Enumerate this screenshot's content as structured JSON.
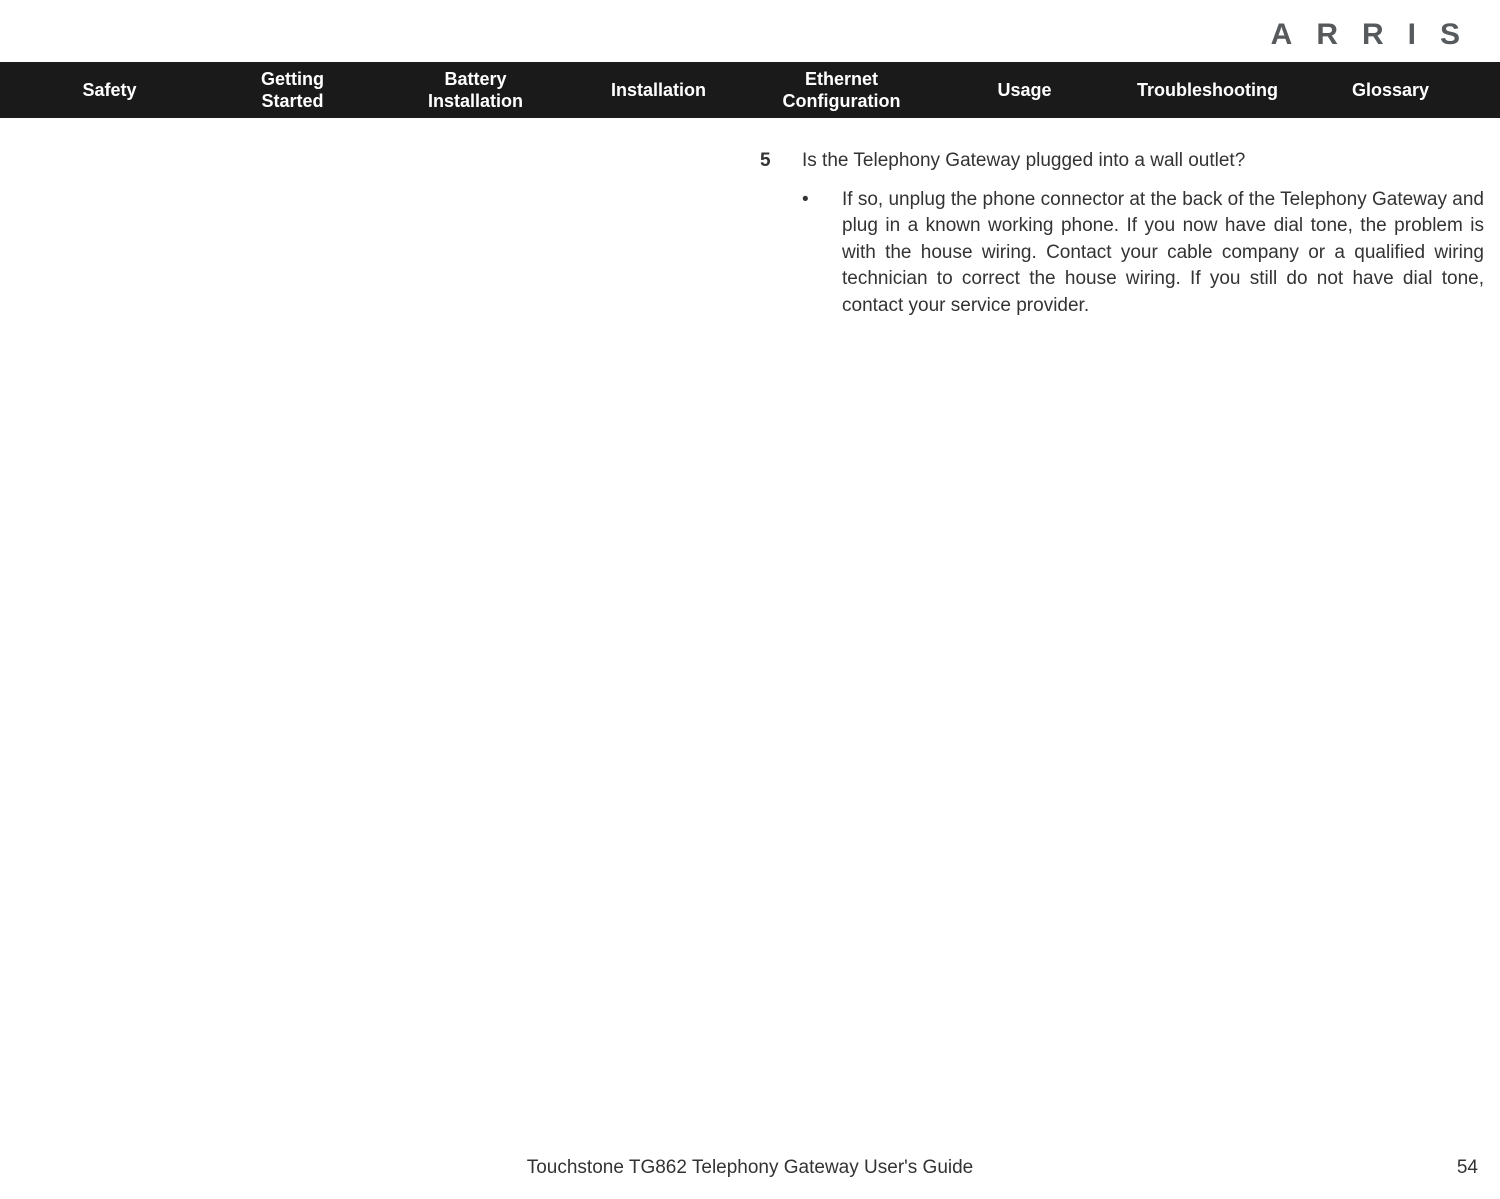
{
  "brand": "ARRIS",
  "nav": [
    "Safety",
    "Getting\nStarted",
    "Battery\nInstallation",
    "Installation",
    "Ethernet\nConfiguration",
    "Usage",
    "Troubleshooting",
    "Glossary"
  ],
  "step": {
    "number": "5",
    "question": "Is the Telephony Gateway plugged into a wall outlet?"
  },
  "bullet": {
    "mark": "•",
    "text": "If so, unplug the phone connector at the back of the Telephony Gateway and plug in a known working phone. If you now have dial tone, the problem is with the house wiring. Contact your cable company or a qualified wiring technician to correct the house wiring. If you still do not have dial tone, contact your service provider."
  },
  "footer": {
    "title": "Touchstone TG862 Telephony Gateway User's Guide",
    "page": "54"
  },
  "colors": {
    "navBackground": "#1a1a1a",
    "navText": "#ffffff",
    "bodyText": "#333333",
    "brandText": "#565a5d",
    "pageBackground": "#ffffff"
  }
}
